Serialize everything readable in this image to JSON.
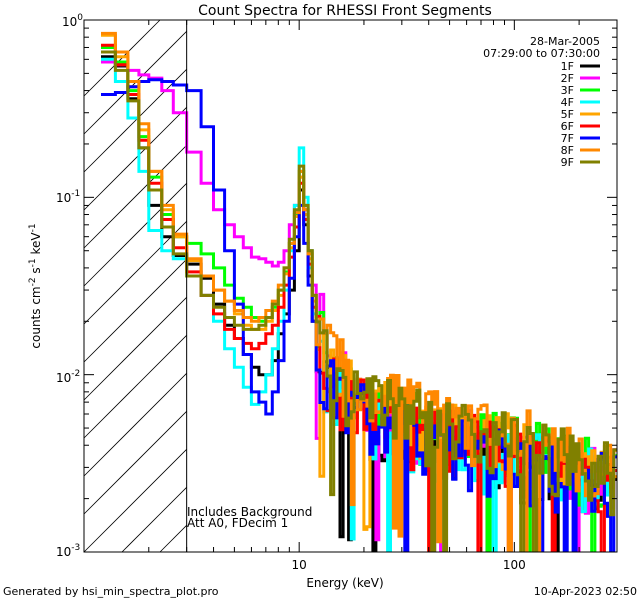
{
  "chart_data": {
    "type": "line",
    "title": "Count Spectra for RHESSI Front Segments",
    "date": "28-Mar-2005",
    "time_range": "07:29:00 to 07:30:00",
    "xlabel": "Energy (keV)",
    "ylabel_base": "counts cm",
    "ylabel_exp1": "-2",
    "ylabel_mid": " s",
    "ylabel_exp2": "-1",
    "ylabel_end": " keV",
    "ylabel_exp3": "-1",
    "x_scale": "log",
    "y_scale": "log",
    "xlim": [
      1.0,
      300.0
    ],
    "ylim": [
      0.001,
      1.0
    ],
    "x_ticks": [
      {
        "value": 10,
        "label": "10"
      },
      {
        "value": 100,
        "label": "100"
      }
    ],
    "y_ticks": [
      {
        "value": 0.001,
        "base": "10",
        "exp": "-3"
      },
      {
        "value": 0.01,
        "base": "10",
        "exp": "-2"
      },
      {
        "value": 0.1,
        "base": "10",
        "exp": "-1"
      },
      {
        "value": 1.0,
        "base": "10",
        "exp": "0"
      }
    ],
    "low_energy_cutoff_keV": 3.0,
    "annotations": [
      "Includes Background",
      "Att A0, FDecim 1"
    ],
    "footer_left": "Generated by hsi_min_spectra_plot.pro",
    "footer_right": "10-Apr-2023 02:50",
    "energy_keV": [
      1.2,
      1.4,
      1.6,
      1.8,
      2.0,
      2.3,
      2.6,
      3.0,
      3.5,
      4.0,
      4.5,
      5.0,
      5.5,
      6.0,
      6.5,
      7.0,
      7.5,
      8.0,
      8.5,
      9.0,
      9.5,
      10.0,
      10.5,
      11.0,
      11.5,
      12.0,
      13.0,
      14.0,
      16.0,
      18.0,
      20.0,
      25.0,
      30.0,
      40.0,
      50.0,
      70.0,
      100.0,
      150.0,
      200.0,
      300.0
    ],
    "series": [
      {
        "name": "1F",
        "color": "#000000",
        "values": [
          0.62,
          0.55,
          0.36,
          0.19,
          0.09,
          0.06,
          0.047,
          0.042,
          0.035,
          0.025,
          0.019,
          0.016,
          0.013,
          0.011,
          0.01,
          0.01,
          0.012,
          0.017,
          0.022,
          0.03,
          0.05,
          0.11,
          0.07,
          0.036,
          0.02,
          0.012,
          0.008,
          0.007,
          0.006,
          0.005,
          0.0045,
          0.004,
          0.0038,
          0.0036,
          0.0034,
          0.0032,
          0.003,
          0.0027,
          0.0025,
          0.0022
        ]
      },
      {
        "name": "2F",
        "color": "#ff00ff",
        "values": [
          0.58,
          0.56,
          0.52,
          0.49,
          0.47,
          0.4,
          0.3,
          0.18,
          0.12,
          0.085,
          0.07,
          0.06,
          0.052,
          0.046,
          0.045,
          0.043,
          0.041,
          0.043,
          0.05,
          0.07,
          0.09,
          0.13,
          0.085,
          0.05,
          0.032,
          0.022,
          0.016,
          0.012,
          0.009,
          0.007,
          0.0065,
          0.0055,
          0.005,
          0.0045,
          0.0042,
          0.0038,
          0.0034,
          0.003,
          0.0027,
          0.0024
        ]
      },
      {
        "name": "3F",
        "color": "#00ff00",
        "values": [
          0.7,
          0.58,
          0.4,
          0.22,
          0.13,
          0.08,
          0.06,
          0.055,
          0.048,
          0.04,
          0.032,
          0.027,
          0.024,
          0.021,
          0.02,
          0.021,
          0.024,
          0.03,
          0.038,
          0.055,
          0.08,
          0.14,
          0.09,
          0.05,
          0.028,
          0.017,
          0.012,
          0.01,
          0.008,
          0.0072,
          0.0065,
          0.0058,
          0.0052,
          0.0048,
          0.0044,
          0.004,
          0.0036,
          0.0032,
          0.0029,
          0.0025
        ]
      },
      {
        "name": "4F",
        "color": "#00ffff",
        "values": [
          0.6,
          0.45,
          0.28,
          0.14,
          0.065,
          0.05,
          0.045,
          0.036,
          0.028,
          0.02,
          0.014,
          0.011,
          0.0085,
          0.0068,
          0.008,
          0.01,
          0.014,
          0.02,
          0.03,
          0.05,
          0.09,
          0.19,
          0.1,
          0.04,
          0.022,
          0.013,
          0.009,
          0.0075,
          0.0065,
          0.0058,
          0.0052,
          0.0046,
          0.0042,
          0.0039,
          0.0036,
          0.0033,
          0.0031,
          0.0028,
          0.0026,
          0.0023
        ]
      },
      {
        "name": "5F",
        "color": "#ffa500",
        "values": [
          0.82,
          0.62,
          0.42,
          0.24,
          0.14,
          0.085,
          0.06,
          0.044,
          0.036,
          0.03,
          0.026,
          0.022,
          0.019,
          0.018,
          0.018,
          0.02,
          0.023,
          0.028,
          0.037,
          0.052,
          0.078,
          0.13,
          0.08,
          0.045,
          0.026,
          0.016,
          0.011,
          0.0095,
          0.0082,
          0.0073,
          0.0066,
          0.0059,
          0.0054,
          0.0049,
          0.0045,
          0.0041,
          0.0037,
          0.0033,
          0.003,
          0.0026
        ]
      },
      {
        "name": "6F",
        "color": "#ff0000",
        "values": [
          0.72,
          0.56,
          0.38,
          0.21,
          0.12,
          0.075,
          0.052,
          0.038,
          0.028,
          0.022,
          0.018,
          0.016,
          0.015,
          0.014,
          0.015,
          0.017,
          0.019,
          0.024,
          0.032,
          0.046,
          0.068,
          0.12,
          0.075,
          0.042,
          0.024,
          0.015,
          0.0105,
          0.0088,
          0.0074,
          0.0065,
          0.0058,
          0.0052,
          0.0047,
          0.0043,
          0.004,
          0.0036,
          0.0033,
          0.003,
          0.0027,
          0.0024
        ]
      },
      {
        "name": "7F",
        "color": "#0000ff",
        "values": [
          0.38,
          0.39,
          0.42,
          0.45,
          0.46,
          0.45,
          0.43,
          0.4,
          0.25,
          0.11,
          0.05,
          0.025,
          0.013,
          0.008,
          0.007,
          0.006,
          0.008,
          0.012,
          0.02,
          0.035,
          0.06,
          0.09,
          0.055,
          0.032,
          0.02,
          0.013,
          0.0095,
          0.008,
          0.0068,
          0.006,
          0.0053,
          0.0047,
          0.0043,
          0.0039,
          0.0036,
          0.0033,
          0.003,
          0.0027,
          0.0025,
          0.0022
        ]
      },
      {
        "name": "8F",
        "color": "#ff8800",
        "values": [
          0.84,
          0.66,
          0.45,
          0.26,
          0.14,
          0.09,
          0.062,
          0.045,
          0.036,
          0.03,
          0.026,
          0.023,
          0.021,
          0.02,
          0.021,
          0.023,
          0.026,
          0.032,
          0.04,
          0.055,
          0.082,
          0.14,
          0.085,
          0.048,
          0.028,
          0.018,
          0.013,
          0.011,
          0.0095,
          0.0085,
          0.0077,
          0.0068,
          0.0062,
          0.0056,
          0.0051,
          0.0046,
          0.0041,
          0.0036,
          0.0032,
          0.0028
        ]
      },
      {
        "name": "9F",
        "color": "#808000",
        "values": [
          0.66,
          0.52,
          0.35,
          0.19,
          0.11,
          0.068,
          0.048,
          0.036,
          0.028,
          0.024,
          0.021,
          0.019,
          0.018,
          0.018,
          0.019,
          0.021,
          0.025,
          0.03,
          0.04,
          0.058,
          0.085,
          0.15,
          0.09,
          0.05,
          0.028,
          0.017,
          0.012,
          0.01,
          0.0085,
          0.0075,
          0.0068,
          0.006,
          0.0054,
          0.0049,
          0.0045,
          0.0041,
          0.0037,
          0.0033,
          0.0029,
          0.0025
        ]
      }
    ]
  }
}
